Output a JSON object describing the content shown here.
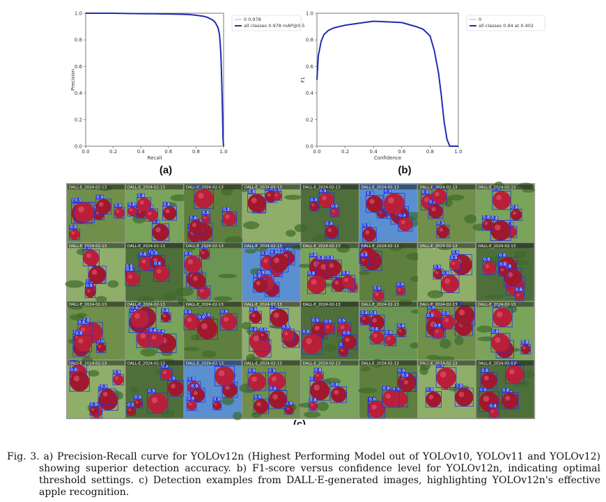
{
  "chart_data": [
    {
      "type": "line",
      "panel": "(a)",
      "title": "",
      "xlabel": "Recall",
      "ylabel": "Precision",
      "xlim": [
        0,
        1
      ],
      "ylim": [
        0,
        1
      ],
      "xticks": [
        "0.0",
        "0.2",
        "0.4",
        "0.6",
        "0.8",
        "1.0"
      ],
      "yticks": [
        "0.0",
        "0.2",
        "0.4",
        "0.6",
        "0.8",
        "1.0"
      ],
      "legend": [
        "0 0.978",
        "all classes 0.978 mAP@0.5"
      ],
      "legend_position": "top-right",
      "series": [
        {
          "name": "0 0.978",
          "color": "#9fb5cf",
          "x": [
            0.0,
            0.1,
            0.2,
            0.3,
            0.4,
            0.5,
            0.6,
            0.7,
            0.75,
            0.8,
            0.85,
            0.88,
            0.9,
            0.92,
            0.94,
            0.95,
            0.96,
            0.97,
            0.975,
            0.98,
            0.985,
            0.99,
            0.993,
            0.996,
            1.0
          ],
          "y": [
            1.0,
            1.0,
            1.0,
            0.998,
            0.997,
            0.996,
            0.994,
            0.992,
            0.99,
            0.985,
            0.978,
            0.97,
            0.96,
            0.95,
            0.93,
            0.91,
            0.89,
            0.84,
            0.78,
            0.7,
            0.55,
            0.35,
            0.2,
            0.05,
            0.0
          ]
        },
        {
          "name": "all classes 0.978 mAP@0.5",
          "color": "#1f2bb0",
          "x": [
            0.0,
            0.1,
            0.2,
            0.3,
            0.4,
            0.5,
            0.6,
            0.7,
            0.75,
            0.8,
            0.85,
            0.88,
            0.9,
            0.92,
            0.94,
            0.95,
            0.96,
            0.97,
            0.975,
            0.98,
            0.985,
            0.99,
            0.993,
            0.996,
            1.0
          ],
          "y": [
            1.0,
            1.0,
            1.0,
            0.998,
            0.997,
            0.996,
            0.994,
            0.992,
            0.99,
            0.985,
            0.978,
            0.97,
            0.96,
            0.95,
            0.93,
            0.91,
            0.89,
            0.84,
            0.78,
            0.7,
            0.55,
            0.35,
            0.2,
            0.05,
            0.0
          ]
        }
      ]
    },
    {
      "type": "line",
      "panel": "(b)",
      "title": "",
      "xlabel": "Confidence",
      "ylabel": "F1",
      "xlim": [
        0,
        1
      ],
      "ylim": [
        0,
        1
      ],
      "xticks": [
        "0.0",
        "0.2",
        "0.4",
        "0.6",
        "0.8",
        "1.0"
      ],
      "yticks": [
        "0.0",
        "0.2",
        "0.4",
        "0.6",
        "0.8",
        "1.0"
      ],
      "legend": [
        "0",
        "all classes 0.94 at 0.402"
      ],
      "legend_position": "top-right",
      "series": [
        {
          "name": "0",
          "color": "#9fb5cf",
          "x": [
            0.0,
            0.01,
            0.03,
            0.05,
            0.08,
            0.12,
            0.2,
            0.3,
            0.4,
            0.5,
            0.6,
            0.7,
            0.75,
            0.8,
            0.83,
            0.86,
            0.88,
            0.9,
            0.92,
            0.94,
            0.96,
            1.0
          ],
          "y": [
            0.5,
            0.68,
            0.79,
            0.84,
            0.87,
            0.89,
            0.91,
            0.925,
            0.94,
            0.935,
            0.93,
            0.9,
            0.88,
            0.83,
            0.72,
            0.55,
            0.38,
            0.18,
            0.05,
            0.0,
            0.0,
            0.0
          ]
        },
        {
          "name": "all classes 0.94 at 0.402",
          "color": "#1f2bb0",
          "x": [
            0.0,
            0.01,
            0.03,
            0.05,
            0.08,
            0.12,
            0.2,
            0.3,
            0.4,
            0.5,
            0.6,
            0.7,
            0.75,
            0.8,
            0.83,
            0.86,
            0.88,
            0.9,
            0.92,
            0.94,
            0.96,
            1.0
          ],
          "y": [
            0.5,
            0.68,
            0.79,
            0.84,
            0.87,
            0.89,
            0.91,
            0.925,
            0.94,
            0.935,
            0.93,
            0.9,
            0.88,
            0.83,
            0.72,
            0.55,
            0.38,
            0.18,
            0.05,
            0.0,
            0.0,
            0.0
          ]
        }
      ]
    }
  ],
  "panel_labels": {
    "a": "(a)",
    "b": "(b)",
    "c": "(c)"
  },
  "detection_grid": {
    "rows": 4,
    "cols": 8,
    "box_color": "#2233dd",
    "tile_labels": [
      [
        "0.9",
        "0.8",
        "0.8",
        "0.8",
        "0.9",
        "0.9",
        "0.9",
        "0.8"
      ],
      [
        "0.9",
        "0.8",
        "0.9",
        "0.9",
        "0.8",
        "0.9",
        "0.9",
        "0.8"
      ],
      [
        "0.8",
        "0.8",
        "0.9",
        "0.9",
        "0.9",
        "0.8",
        "0.9",
        "0.8"
      ],
      [
        "0.9",
        "0.9",
        "0.9",
        "0.9",
        "0.8",
        "0.9",
        "0.9",
        "0.8"
      ]
    ],
    "file_prefix": [
      "DALL-E_2024-02-13",
      "DALL-E_2024-02-13",
      "DALL-E_2024-02-13",
      "DALL-E_2024-02-13"
    ]
  },
  "caption": "Fig. 3. a) Precision-Recall curve for YOLOv12n (Highest Performing Model out of YOLOv10, YOLOv11 and YOLOv12) showing superior detection accuracy. b) F1-score versus confidence level for YOLOv12n, indicating optimal threshold settings. c) Detection examples from DALL·E-generated images, highlighting YOLOv12n's effective apple recognition."
}
